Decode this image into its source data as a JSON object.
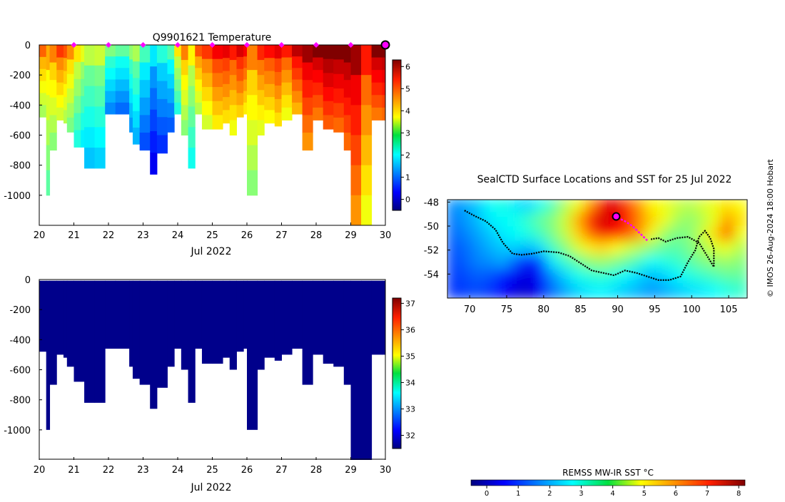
{
  "top_panel": {
    "title": "Q9901621  Temperature",
    "xlabel": "Jul 2022",
    "colorbar_ticks": [
      "0",
      "1",
      "2",
      "3",
      "4",
      "5",
      "6"
    ]
  },
  "bottom_panel": {
    "xlabel": "Jul 2022",
    "colorbar_ticks": [
      "32",
      "33",
      "34",
      "35",
      "36",
      "37"
    ]
  },
  "map_panel": {
    "title": "SealCTD Surface Locations and SST for 25 Jul 2022",
    "colorbar_label": "REMSS MW-IR SST °C",
    "colorbar_ticks": [
      "0",
      "1",
      "2",
      "3",
      "4",
      "5",
      "6",
      "7",
      "8"
    ],
    "x_ticks": [
      "70",
      "75",
      "80",
      "85",
      "90",
      "95",
      "100",
      "105"
    ],
    "y_ticks": [
      "-48",
      "-50",
      "-52",
      "-54"
    ]
  },
  "credit": "© IMOS 26-Aug-2024 18:00 Hobart",
  "colors": {
    "profile_marker": "#ff00ff",
    "current_marker_edge": "#000000",
    "track": "#000000",
    "salinity_fill": "#00008b"
  },
  "chart_data": [
    {
      "type": "heatmap",
      "title": "Q9901621  Temperature",
      "xlabel": "Jul 2022",
      "ylabel": "",
      "xlim": [
        20,
        30
      ],
      "ylim": [
        -1200,
        0
      ],
      "x_ticks": [
        "20",
        "21",
        "22",
        "23",
        "24",
        "25",
        "26",
        "27",
        "28",
        "29",
        "30"
      ],
      "y_ticks": [
        "0",
        "-200",
        "-400",
        "-600",
        "-800",
        "-1000"
      ],
      "colorbar": {
        "range": [
          -0.5,
          6.3
        ],
        "ticks": [
          0,
          1,
          2,
          3,
          4,
          5,
          6
        ]
      },
      "profile_markers_x": [
        21,
        22,
        23,
        24,
        25,
        26,
        27,
        28,
        29
      ],
      "current_marker_x": 30,
      "profiles": [
        {
          "x": 20.0,
          "depth": 480,
          "t": 4.5
        },
        {
          "x": 20.2,
          "depth": 1000,
          "t": 4.0
        },
        {
          "x": 20.3,
          "depth": 700,
          "t": 4.3
        },
        {
          "x": 20.5,
          "depth": 500,
          "t": 4.8
        },
        {
          "x": 20.7,
          "depth": 520,
          "t": 4.6
        },
        {
          "x": 20.8,
          "depth": 580,
          "t": 4.2
        },
        {
          "x": 21.0,
          "depth": 680,
          "t": 3.6
        },
        {
          "x": 21.2,
          "depth": 680,
          "t": 3.3
        },
        {
          "x": 21.3,
          "depth": 820,
          "t": 3.0
        },
        {
          "x": 21.6,
          "depth": 820,
          "t": 3.1
        },
        {
          "x": 21.9,
          "depth": 460,
          "t": 2.6
        },
        {
          "x": 22.2,
          "depth": 460,
          "t": 2.4
        },
        {
          "x": 22.6,
          "depth": 580,
          "t": 2.7
        },
        {
          "x": 22.7,
          "depth": 660,
          "t": 2.9
        },
        {
          "x": 22.9,
          "depth": 700,
          "t": 2.2
        },
        {
          "x": 23.2,
          "depth": 860,
          "t": 1.6
        },
        {
          "x": 23.4,
          "depth": 720,
          "t": 2.0
        },
        {
          "x": 23.7,
          "depth": 580,
          "t": 2.3
        },
        {
          "x": 23.9,
          "depth": 460,
          "t": 3.6
        },
        {
          "x": 24.1,
          "depth": 600,
          "t": 4.3
        },
        {
          "x": 24.3,
          "depth": 820,
          "t": 3.5
        },
        {
          "x": 24.5,
          "depth": 460,
          "t": 4.6
        },
        {
          "x": 24.7,
          "depth": 560,
          "t": 4.8
        },
        {
          "x": 25.0,
          "depth": 560,
          "t": 5.2
        },
        {
          "x": 25.3,
          "depth": 520,
          "t": 5.3
        },
        {
          "x": 25.5,
          "depth": 600,
          "t": 5.0
        },
        {
          "x": 25.7,
          "depth": 480,
          "t": 5.4
        },
        {
          "x": 25.9,
          "depth": 460,
          "t": 5.2
        },
        {
          "x": 26.0,
          "depth": 1000,
          "t": 4.3
        },
        {
          "x": 26.3,
          "depth": 600,
          "t": 4.9
        },
        {
          "x": 26.5,
          "depth": 520,
          "t": 5.1
        },
        {
          "x": 26.8,
          "depth": 540,
          "t": 5.3
        },
        {
          "x": 27.0,
          "depth": 500,
          "t": 5.0
        },
        {
          "x": 27.3,
          "depth": 460,
          "t": 5.6
        },
        {
          "x": 27.6,
          "depth": 700,
          "t": 5.8
        },
        {
          "x": 27.9,
          "depth": 500,
          "t": 6.0
        },
        {
          "x": 28.2,
          "depth": 560,
          "t": 6.2
        },
        {
          "x": 28.5,
          "depth": 580,
          "t": 6.1
        },
        {
          "x": 28.8,
          "depth": 700,
          "t": 6.1
        },
        {
          "x": 29.0,
          "depth": 1200,
          "t": 5.8
        },
        {
          "x": 29.3,
          "depth": 1200,
          "t": 5.0
        },
        {
          "x": 29.6,
          "depth": 500,
          "t": 6.0
        },
        {
          "x": 29.9,
          "depth": 500,
          "t": 6.1
        }
      ]
    },
    {
      "type": "heatmap",
      "title": "",
      "xlabel": "Jul 2022",
      "ylabel": "",
      "xlim": [
        20,
        30
      ],
      "ylim": [
        -1200,
        0
      ],
      "x_ticks": [
        "20",
        "21",
        "22",
        "23",
        "24",
        "25",
        "26",
        "27",
        "28",
        "29",
        "30"
      ],
      "y_ticks": [
        "0",
        "-200",
        "-400",
        "-600",
        "-800",
        "-1000"
      ],
      "colorbar": {
        "range": [
          31.5,
          37.2
        ],
        "ticks": [
          32,
          33,
          34,
          35,
          36,
          37
        ]
      },
      "uniform_value": 31.5
    },
    {
      "type": "heatmap",
      "title": "SealCTD Surface Locations and SST for 25 Jul 2022",
      "xlabel": "",
      "ylabel": "",
      "xlim": [
        67,
        107.5
      ],
      "ylim": [
        -56,
        -47.8
      ],
      "x_ticks": [
        70,
        75,
        80,
        85,
        90,
        95,
        100,
        105
      ],
      "y_ticks": [
        -48,
        -50,
        -52,
        -54
      ],
      "colorbar": {
        "label": "REMSS MW-IR SST °C",
        "range": [
          -0.5,
          8.2
        ],
        "ticks": [
          0,
          1,
          2,
          3,
          4,
          5,
          6,
          7,
          8
        ]
      },
      "sst_field": [
        [
          1.8,
          2.0,
          2.3,
          2.8,
          3.0,
          2.6,
          2.4,
          2.9,
          3.4,
          4.2,
          4.8,
          5.8,
          7.2,
          7.4,
          6.6,
          5.8,
          5.0,
          4.8,
          4.5,
          4.3,
          4.6,
          4.8,
          5.2,
          4.9
        ],
        [
          1.6,
          1.9,
          2.2,
          2.6,
          2.8,
          2.9,
          3.2,
          3.6,
          3.9,
          4.5,
          5.6,
          6.9,
          7.5,
          7.3,
          7.0,
          6.0,
          5.3,
          4.8,
          4.2,
          4.0,
          4.3,
          4.8,
          5.8,
          5.2
        ],
        [
          1.5,
          1.7,
          2.0,
          2.3,
          2.6,
          2.8,
          3.0,
          3.3,
          3.8,
          4.4,
          5.3,
          6.2,
          7.2,
          7.0,
          6.5,
          5.8,
          4.8,
          4.1,
          3.8,
          3.9,
          4.5,
          5.2,
          6.6,
          4.8
        ],
        [
          1.3,
          1.5,
          1.8,
          2.1,
          2.3,
          2.4,
          2.2,
          2.5,
          3.3,
          3.9,
          4.6,
          5.1,
          5.3,
          5.0,
          4.6,
          4.3,
          3.9,
          3.6,
          3.5,
          3.8,
          4.2,
          4.6,
          4.8,
          4.3
        ],
        [
          1.2,
          1.4,
          1.7,
          1.8,
          2.0,
          1.4,
          0.7,
          1.2,
          2.6,
          3.2,
          3.6,
          4.0,
          4.1,
          3.9,
          3.6,
          3.2,
          2.8,
          3.0,
          3.2,
          3.5,
          3.8,
          4.0,
          4.1,
          3.9
        ],
        [
          1.1,
          1.2,
          1.4,
          1.3,
          0.9,
          0.5,
          0.3,
          0.7,
          1.8,
          2.4,
          2.9,
          3.1,
          3.2,
          3.0,
          2.7,
          2.4,
          2.2,
          2.4,
          2.7,
          3.0,
          3.2,
          3.4,
          3.6,
          3.6
        ],
        [
          1.0,
          1.1,
          1.2,
          1.0,
          0.6,
          0.3,
          0.2,
          0.5,
          1.5,
          2.0,
          2.4,
          2.6,
          2.7,
          2.5,
          2.3,
          2.1,
          1.9,
          2.1,
          2.3,
          2.5,
          2.6,
          2.8,
          3.0,
          3.2
        ]
      ],
      "track": [
        [
          69.3,
          -48.7
        ],
        [
          70.5,
          -49.1
        ],
        [
          72.2,
          -49.6
        ],
        [
          73.5,
          -50.3
        ],
        [
          74.5,
          -51.4
        ],
        [
          75.8,
          -52.3
        ],
        [
          77.0,
          -52.4
        ],
        [
          78.5,
          -52.3
        ],
        [
          80.0,
          -52.1
        ],
        [
          82.0,
          -52.2
        ],
        [
          83.5,
          -52.5
        ],
        [
          85.0,
          -53.1
        ],
        [
          86.5,
          -53.7
        ],
        [
          88.0,
          -53.9
        ],
        [
          89.5,
          -54.1
        ],
        [
          91.0,
          -53.7
        ],
        [
          92.5,
          -53.9
        ],
        [
          94.0,
          -54.2
        ],
        [
          95.5,
          -54.5
        ],
        [
          97.0,
          -54.5
        ],
        [
          98.5,
          -54.2
        ],
        [
          99.5,
          -53.0
        ],
        [
          100.5,
          -52.0
        ],
        [
          101.0,
          -50.9
        ],
        [
          101.8,
          -50.4
        ],
        [
          102.5,
          -51.0
        ],
        [
          103.0,
          -51.9
        ],
        [
          103.0,
          -53.4
        ],
        [
          102.0,
          -52.4
        ],
        [
          101.0,
          -51.4
        ],
        [
          99.5,
          -50.9
        ],
        [
          98.0,
          -51.0
        ],
        [
          96.5,
          -51.3
        ],
        [
          95.5,
          -51.0
        ],
        [
          94.5,
          -51.1
        ]
      ],
      "recent_track": [
        [
          90.0,
          -49.3
        ],
        [
          91.0,
          -49.6
        ],
        [
          92.0,
          -50.0
        ],
        [
          93.0,
          -50.6
        ],
        [
          94.0,
          -51.2
        ]
      ],
      "current_position": [
        89.8,
        -49.2
      ]
    }
  ]
}
